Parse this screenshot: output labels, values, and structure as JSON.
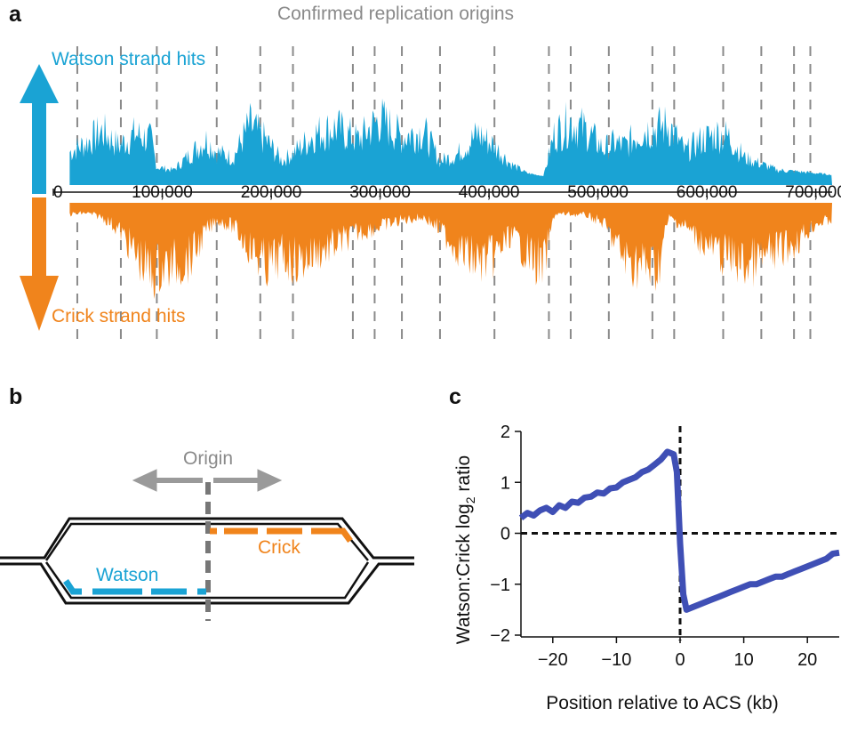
{
  "figure": {
    "panel_labels": [
      "a",
      "b",
      "c"
    ]
  },
  "colors": {
    "watson": "#1aa3d4",
    "crick": "#f0841c",
    "origin_line": "#8a8a8a",
    "curve": "#3f4fb5",
    "axis": "#111111"
  },
  "chart_data": [
    {
      "type": "area",
      "panel": "a",
      "title": "Confirmed replication origins",
      "series": [
        {
          "name": "Watson strand hits",
          "color": "#1aa3d4",
          "direction": "up"
        },
        {
          "name": "Crick strand hits",
          "color": "#f0841c",
          "direction": "down"
        }
      ],
      "x_range": [
        0,
        715000
      ],
      "x_ticks": [
        0,
        100000,
        200000,
        300000,
        400000,
        500000,
        600000,
        700000
      ],
      "x_tick_labels": [
        "0",
        "100,000",
        "200,000",
        "300,000",
        "400,000",
        "500,000",
        "600,000",
        "700,000"
      ],
      "origins_above": [
        22000,
        62000,
        95000,
        150000,
        190000,
        220000,
        275000,
        295000,
        320000,
        355000,
        405000,
        455000,
        475000,
        510000,
        550000,
        570000,
        615000,
        650000,
        680000,
        695000
      ],
      "origins_below": [
        22000,
        62000,
        95000,
        150000,
        190000,
        220000,
        275000,
        295000,
        320000,
        355000,
        405000,
        455000,
        475000,
        510000,
        550000,
        570000,
        615000,
        650000,
        680000,
        695000
      ],
      "watson_envelope_x": [
        15000,
        30000,
        45000,
        60000,
        75000,
        90000,
        95000,
        110000,
        125000,
        140000,
        150000,
        165000,
        180000,
        195000,
        210000,
        225000,
        240000,
        260000,
        280000,
        300000,
        320000,
        340000,
        355000,
        370000,
        390000,
        405000,
        420000,
        435000,
        450000,
        460000,
        475000,
        490000,
        505000,
        515000,
        525000,
        540000,
        555000,
        565000,
        580000,
        595000,
        610000,
        620000,
        635000,
        650000,
        665000,
        680000,
        700000,
        715000
      ],
      "watson_envelope_y": [
        40,
        55,
        75,
        50,
        70,
        60,
        15,
        10,
        35,
        60,
        40,
        30,
        85,
        60,
        25,
        45,
        70,
        80,
        60,
        95,
        65,
        75,
        25,
        35,
        70,
        50,
        20,
        5,
        0,
        70,
        90,
        75,
        45,
        55,
        50,
        75,
        80,
        85,
        40,
        60,
        70,
        65,
        30,
        20,
        10,
        8,
        5,
        2
      ],
      "crick_envelope_x": [
        15000,
        30000,
        45000,
        60000,
        75000,
        90000,
        95000,
        110000,
        125000,
        140000,
        150000,
        165000,
        180000,
        195000,
        210000,
        225000,
        240000,
        260000,
        280000,
        300000,
        320000,
        340000,
        355000,
        370000,
        390000,
        405000,
        420000,
        435000,
        450000,
        460000,
        475000,
        490000,
        505000,
        515000,
        525000,
        540000,
        555000,
        565000,
        580000,
        595000,
        610000,
        620000,
        635000,
        650000,
        665000,
        680000,
        700000,
        715000
      ],
      "crick_envelope_y": [
        10,
        8,
        15,
        35,
        75,
        110,
        100,
        95,
        85,
        40,
        20,
        30,
        65,
        95,
        80,
        90,
        75,
        60,
        40,
        30,
        20,
        15,
        35,
        65,
        90,
        80,
        45,
        75,
        100,
        10,
        10,
        12,
        25,
        55,
        85,
        95,
        100,
        15,
        30,
        55,
        75,
        80,
        95,
        85,
        70,
        60,
        25,
        20
      ]
    },
    {
      "type": "diagram",
      "panel": "b",
      "labels": {
        "origin": "Origin",
        "watson": "Watson",
        "crick": "Crick"
      }
    },
    {
      "type": "line",
      "panel": "c",
      "xlabel": "Position relative to ACS (kb)",
      "ylabel_main": "Watson:Crick log",
      "ylabel_sub": "2",
      "ylabel_tail": " ratio",
      "xlim": [
        -25,
        25
      ],
      "ylim": [
        -2,
        2
      ],
      "x_ticks": [
        -20,
        -10,
        0,
        10,
        20
      ],
      "x_tick_labels": [
        "−20",
        "−10",
        "0",
        "10",
        "20"
      ],
      "y_ticks": [
        -2,
        -1,
        0,
        1,
        2
      ],
      "y_tick_labels": [
        "−2",
        "−1",
        "0",
        "1",
        "2"
      ],
      "series": [
        {
          "x": [
            -25,
            -24,
            -23,
            -22,
            -21,
            -20,
            -19,
            -18,
            -17,
            -16,
            -15,
            -14,
            -13,
            -12,
            -11,
            -10,
            -9,
            -8,
            -7,
            -6,
            -5,
            -4,
            -3,
            -2,
            -1,
            -0.5,
            0,
            0.5,
            1,
            2,
            3,
            4,
            5,
            6,
            7,
            8,
            9,
            10,
            11,
            12,
            13,
            14,
            15,
            16,
            17,
            18,
            19,
            20,
            21,
            22,
            23,
            24,
            25
          ],
          "y": [
            0.3,
            0.4,
            0.35,
            0.45,
            0.5,
            0.42,
            0.55,
            0.5,
            0.62,
            0.6,
            0.7,
            0.72,
            0.8,
            0.78,
            0.88,
            0.9,
            1.0,
            1.05,
            1.1,
            1.2,
            1.25,
            1.35,
            1.45,
            1.6,
            1.55,
            1.2,
            -0.2,
            -1.2,
            -1.5,
            -1.45,
            -1.4,
            -1.35,
            -1.3,
            -1.25,
            -1.2,
            -1.15,
            -1.1,
            -1.05,
            -1.0,
            -1.0,
            -0.95,
            -0.9,
            -0.85,
            -0.85,
            -0.8,
            -0.75,
            -0.7,
            -0.65,
            -0.6,
            -0.55,
            -0.5,
            -0.4,
            -0.38
          ]
        }
      ],
      "vline_x": 0,
      "hline_y": 0
    }
  ]
}
